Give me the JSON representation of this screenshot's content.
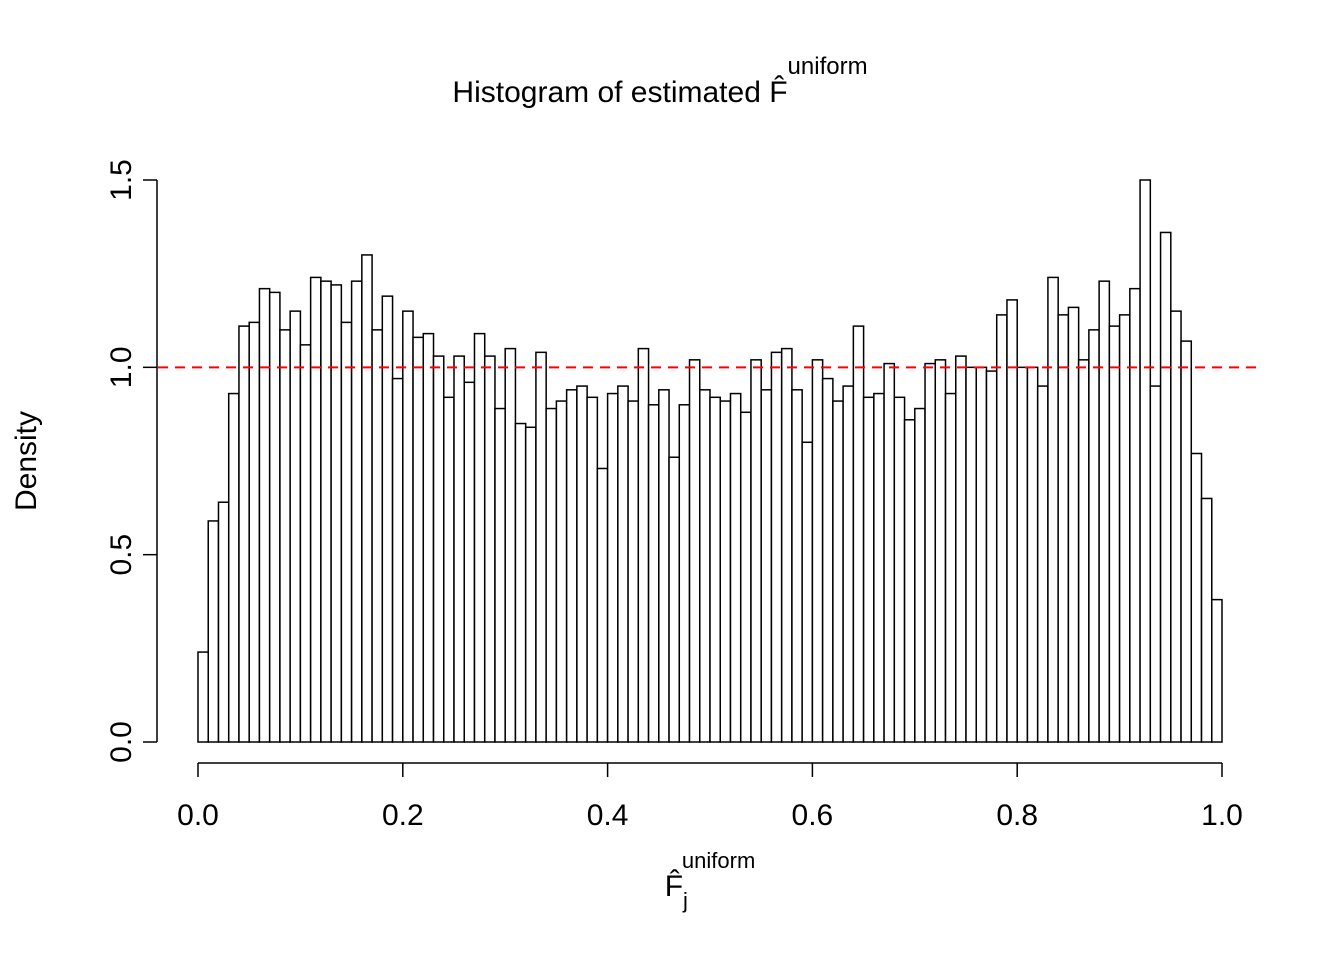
{
  "chart_data": {
    "type": "histogram",
    "title": {
      "text": "Histogram of estimated F̂",
      "superscript": "uniform"
    },
    "x_label": {
      "base": "F̂",
      "subscript": "j",
      "superscript": "uniform"
    },
    "y_label": "Density",
    "bins": [
      0,
      0.01,
      0.02,
      0.03,
      0.04,
      0.05,
      0.06,
      0.07,
      0.08,
      0.09,
      0.1,
      0.11,
      0.12,
      0.13,
      0.14,
      0.15,
      0.16,
      0.17,
      0.18,
      0.19,
      0.2,
      0.21,
      0.22,
      0.23,
      0.24,
      0.25,
      0.26,
      0.27,
      0.28,
      0.29,
      0.3,
      0.31,
      0.32,
      0.33,
      0.34,
      0.35,
      0.36,
      0.37,
      0.38,
      0.39,
      0.4,
      0.41,
      0.42,
      0.43,
      0.44,
      0.45,
      0.46,
      0.47,
      0.48,
      0.49,
      0.5,
      0.51,
      0.52,
      0.53,
      0.54,
      0.55,
      0.56,
      0.57,
      0.58,
      0.59,
      0.6,
      0.61,
      0.62,
      0.63,
      0.64,
      0.65,
      0.66,
      0.67,
      0.68,
      0.69,
      0.7,
      0.71,
      0.72,
      0.73,
      0.74,
      0.75,
      0.76,
      0.77,
      0.78,
      0.79,
      0.8,
      0.81,
      0.82,
      0.83,
      0.84,
      0.85,
      0.86,
      0.87,
      0.88,
      0.89,
      0.9,
      0.91,
      0.92,
      0.93,
      0.94,
      0.95,
      0.96,
      0.97,
      0.98,
      0.99,
      1
    ],
    "values": [
      0.24,
      0.59,
      0.64,
      0.93,
      1.11,
      1.12,
      1.21,
      1.2,
      1.1,
      1.15,
      1.06,
      1.24,
      1.23,
      1.22,
      1.12,
      1.23,
      1.3,
      1.1,
      1.19,
      0.97,
      1.15,
      1.08,
      1.09,
      1.03,
      0.92,
      1.03,
      0.96,
      1.09,
      1.03,
      0.89,
      1.05,
      0.85,
      0.84,
      1.04,
      0.89,
      0.91,
      0.94,
      0.95,
      0.92,
      0.73,
      0.93,
      0.95,
      0.91,
      1.05,
      0.9,
      0.94,
      0.76,
      0.9,
      1.02,
      0.94,
      0.92,
      0.91,
      0.93,
      0.88,
      1.02,
      0.94,
      1.04,
      1.05,
      0.94,
      0.8,
      1.02,
      0.97,
      0.91,
      0.95,
      1.11,
      0.92,
      0.93,
      1.01,
      0.92,
      0.86,
      0.89,
      1.01,
      1.02,
      0.93,
      1.03,
      1.0,
      1.0,
      0.99,
      1.14,
      1.18,
      1.0,
      1.0,
      0.95,
      1.24,
      1.14,
      1.16,
      1.02,
      1.1,
      1.23,
      1.11,
      1.14,
      1.21,
      1.5,
      0.95,
      1.36,
      1.15,
      1.07,
      0.77,
      0.65,
      0.38
    ],
    "color": "#ffffff",
    "edge_color": "#000000",
    "xlim": [
      0,
      1
    ],
    "ylim": [
      0,
      1.5
    ],
    "xticks": [
      {
        "value": 0,
        "label": "0.0"
      },
      0.2,
      0.4,
      0.6,
      0.8,
      {
        "value": 1,
        "label": "1.0"
      }
    ],
    "yticks": [
      {
        "value": 0,
        "label": "0.0"
      },
      0.5,
      {
        "value": 1,
        "label": "1.0"
      },
      1.5
    ],
    "hline": {
      "value": 1,
      "color": "#ff0000"
    }
  }
}
